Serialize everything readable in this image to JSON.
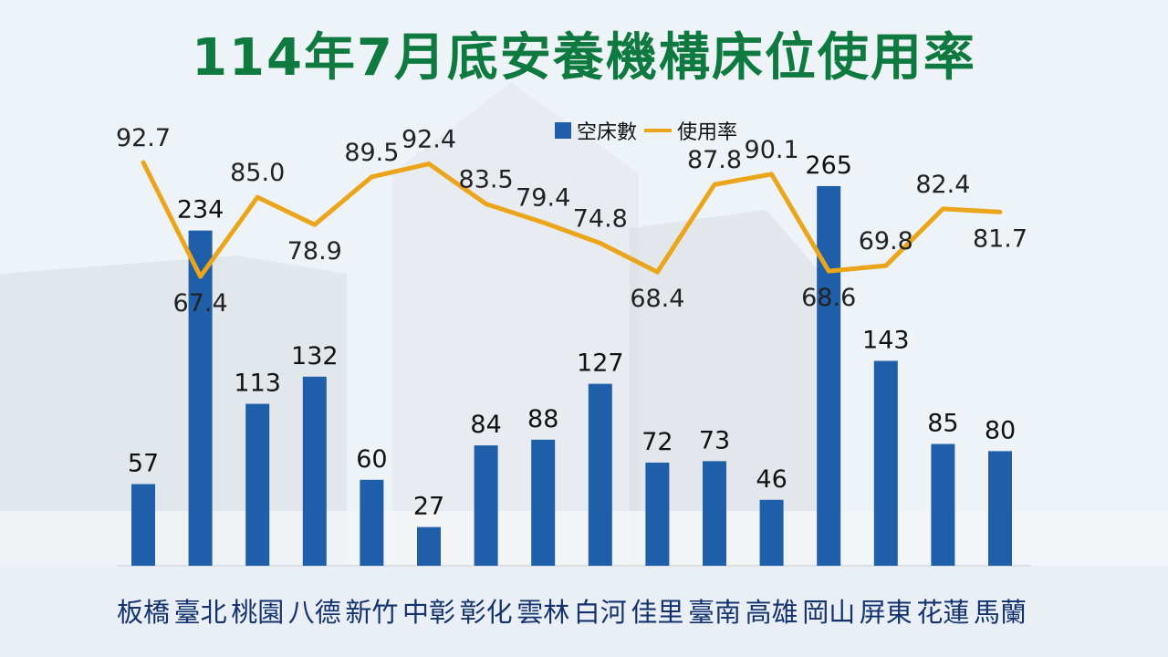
{
  "title": "114年7月底安養機構床位使用率",
  "colors": {
    "bar": "#1f5ea8",
    "line": "#eaa51a",
    "title": "#0f7a3f"
  },
  "chart_data": {
    "type": "bar",
    "categories": [
      "板橋",
      "臺北",
      "桃園",
      "八德",
      "新竹",
      "中彰",
      "彰化",
      "雲林",
      "白河",
      "佳里",
      "臺南",
      "高雄",
      "岡山",
      "屏東",
      "花蓮",
      "馬蘭"
    ],
    "series": [
      {
        "name": "空床數",
        "type": "bar",
        "values": [
          57,
          234,
          113,
          132,
          60,
          27,
          84,
          88,
          127,
          72,
          73,
          46,
          265,
          143,
          85,
          80
        ]
      },
      {
        "name": "使用率",
        "type": "line",
        "values": [
          92.7,
          67.4,
          85.0,
          78.9,
          89.5,
          92.4,
          83.5,
          79.4,
          74.8,
          68.4,
          87.8,
          90.1,
          68.6,
          69.8,
          82.4,
          81.7
        ]
      }
    ],
    "value_labels": {
      "bars": [
        "57",
        "234",
        "113",
        "132",
        "60",
        "27",
        "84",
        "88",
        "127",
        "72",
        "73",
        "46",
        "265",
        "143",
        "85",
        "80"
      ],
      "line": [
        "92.7",
        "67.4",
        "85.0",
        "78.9",
        "89.5",
        "92.4",
        "83.5",
        "79.4",
        "74.8",
        "68.4",
        "87.8",
        "90.1",
        "68.6",
        "69.8",
        "82.4",
        "81.7"
      ]
    },
    "legend_position": "top-center"
  },
  "legend": {
    "bar_label": "空床數",
    "line_label": "使用率"
  }
}
